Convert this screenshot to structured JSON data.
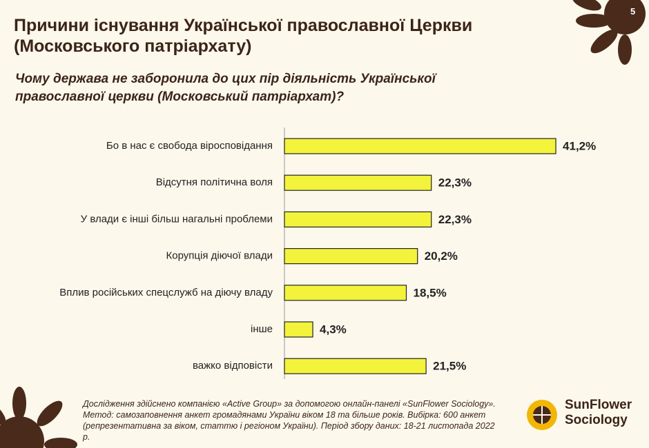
{
  "chart_data": {
    "type": "bar",
    "orientation": "horizontal",
    "title": "Причини існування Української православної Церкви (Московського патріархату)",
    "subtitle": "Чому держава не заборонила до цих пір діяльність Української православної церкви (Московський патріархат)?",
    "categories": [
      "Бо в нас є свобода віросповідання",
      "Відсутня політична воля",
      "У влади є інші більш нагальні проблеми",
      "Корупція діючої влади",
      "Вплив російських спецслужб на діючу владу",
      "інше",
      "важко відповісти"
    ],
    "values": [
      41.2,
      22.3,
      22.3,
      20.2,
      18.5,
      4.3,
      21.5
    ],
    "value_labels": [
      "41,2%",
      "22,3%",
      "22,3%",
      "20,2%",
      "18,5%",
      "4,3%",
      "21,5%"
    ],
    "color": "#f3f33c",
    "footnote": "Дослідження здійснено компанією «Active Group» за допомогою онлайн-панелі «SunFlower Sociology». Метод: самозаповнення анкет громадянами України віком 18 та більше років. Вибірка: 600 анкет (репрезентативна за віком, статтю і регіоном України). Період збору даних: 18-21 листопада 2022 р.",
    "logo": "SunFlower Sociology",
    "page_number": "5"
  }
}
